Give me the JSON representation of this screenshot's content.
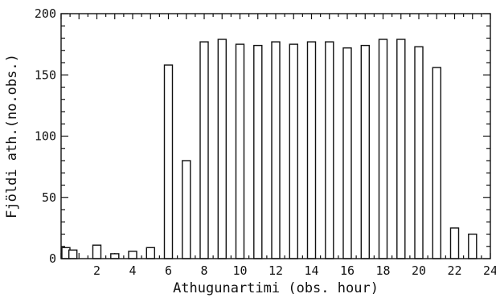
{
  "chart_data": {
    "type": "bar",
    "xlabel": "Athugunartimi (obs. hour)",
    "ylabel": "Fjöldi ath.(no.obs.)",
    "xlim": [
      0,
      24
    ],
    "ylim": [
      0,
      200
    ],
    "x_ticks": [
      2,
      4,
      6,
      8,
      10,
      12,
      14,
      16,
      18,
      20,
      22,
      24
    ],
    "y_ticks": [
      0,
      50,
      100,
      150,
      200
    ],
    "grid": false,
    "bars": [
      {
        "x": 0,
        "value": 9
      },
      {
        "x": 0.3,
        "value": 7
      },
      {
        "x": 2,
        "value": 11
      },
      {
        "x": 3,
        "value": 4
      },
      {
        "x": 4,
        "value": 6
      },
      {
        "x": 5,
        "value": 9
      },
      {
        "x": 6,
        "value": 158
      },
      {
        "x": 7,
        "value": 80
      },
      {
        "x": 8,
        "value": 177
      },
      {
        "x": 9,
        "value": 179
      },
      {
        "x": 10,
        "value": 175
      },
      {
        "x": 11,
        "value": 174
      },
      {
        "x": 12,
        "value": 177
      },
      {
        "x": 13,
        "value": 175
      },
      {
        "x": 14,
        "value": 177
      },
      {
        "x": 15,
        "value": 177
      },
      {
        "x": 16,
        "value": 172
      },
      {
        "x": 17,
        "value": 174
      },
      {
        "x": 18,
        "value": 179
      },
      {
        "x": 19,
        "value": 179
      },
      {
        "x": 20,
        "value": 173
      },
      {
        "x": 21,
        "value": 156
      },
      {
        "x": 22,
        "value": 25
      },
      {
        "x": 23,
        "value": 20
      }
    ]
  }
}
